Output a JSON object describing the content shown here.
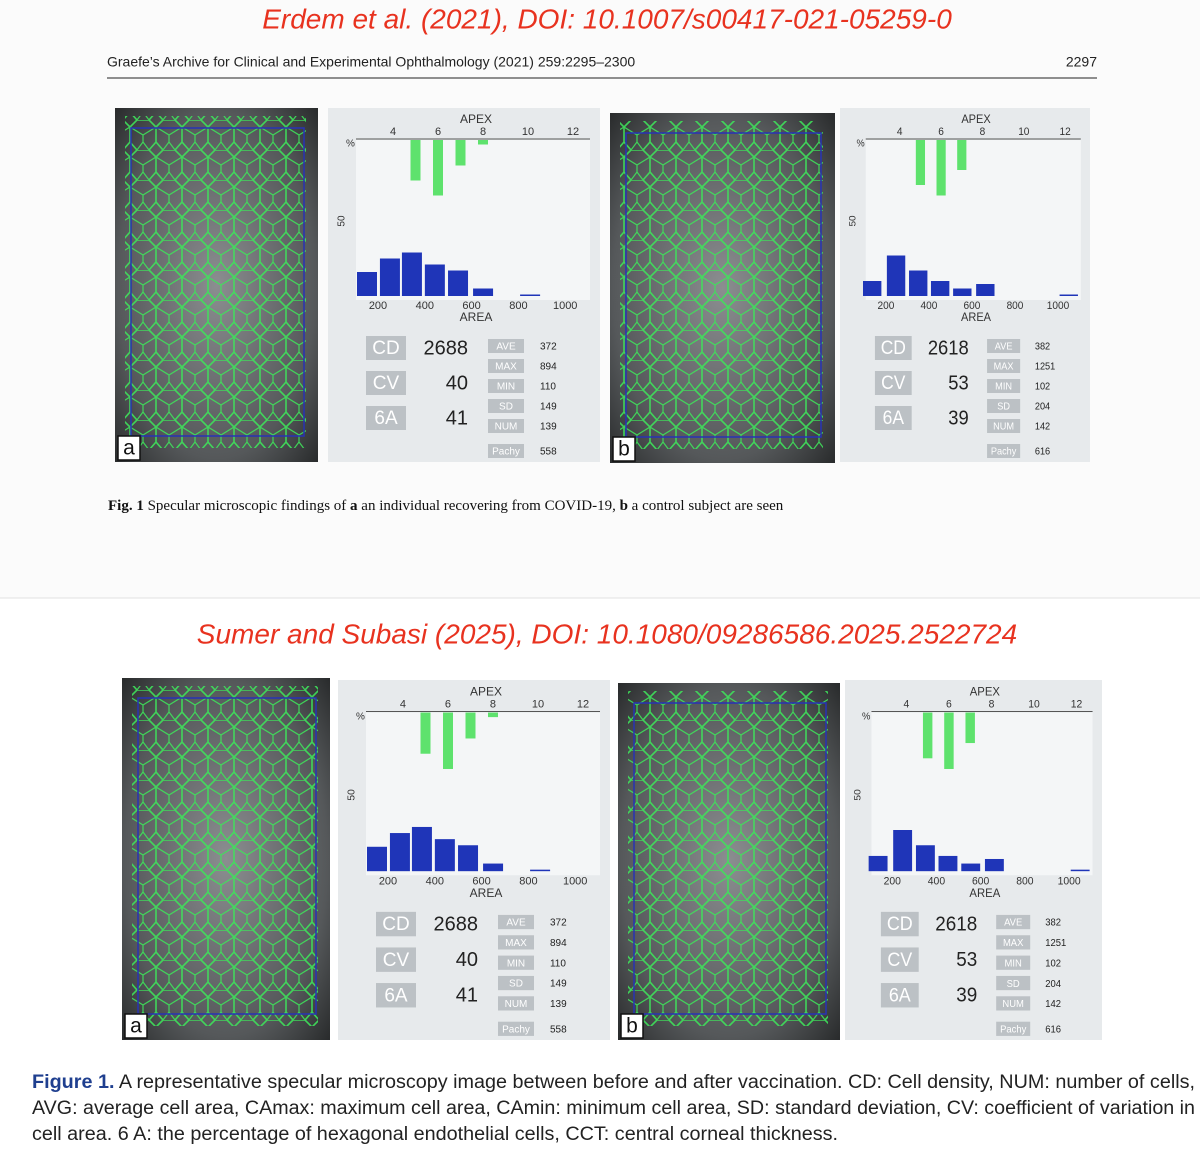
{
  "top": {
    "title": "Erdem et al. (2021), DOI: 10.1007/s00417-021-05259-0",
    "running_head": "Graefe’s Archive for Clinical and Experimental Ophthalmology (2021) 259:2295–2300",
    "page_number": "2297",
    "panels": [
      {
        "label": "a",
        "apex": "APEX",
        "percent_sign": "%",
        "fifty": "50",
        "top_ticks": [
          4,
          6,
          8,
          10,
          12
        ],
        "area_ticks": [
          200,
          400,
          600,
          800,
          1000
        ],
        "area_title": "AREA",
        "hex_bars": {
          "sides": [
            5,
            6,
            7,
            8
          ],
          "percent": [
            27,
            37,
            17,
            3
          ]
        },
        "area_bars": {
          "centers": [
            153,
            251,
            345,
            443,
            542,
            649,
            850
          ],
          "percent": [
            16,
            25,
            29,
            21,
            17,
            5,
            1
          ]
        },
        "stats": [
          {
            "label": "CD",
            "value": 2688
          },
          {
            "label": "CV",
            "value": 40
          },
          {
            "label": "6A",
            "value": 41
          }
        ],
        "details": [
          {
            "label": "AVE",
            "value": 372
          },
          {
            "label": "MAX",
            "value": 894
          },
          {
            "label": "MIN",
            "value": 110
          },
          {
            "label": "SD",
            "value": 149
          },
          {
            "label": "NUM",
            "value": 139
          },
          {
            "label": "Pachy",
            "value": 558
          }
        ]
      },
      {
        "label": "b",
        "apex": "APEX",
        "percent_sign": "%",
        "fifty": "50",
        "top_ticks": [
          4,
          6,
          8,
          10,
          12
        ],
        "area_ticks": [
          200,
          400,
          600,
          800,
          1000
        ],
        "area_title": "AREA",
        "hex_bars": {
          "sides": [
            5,
            6,
            7
          ],
          "percent": [
            30,
            37,
            20
          ]
        },
        "area_bars": {
          "centers": [
            136,
            247,
            350,
            452,
            555,
            662,
            1050
          ],
          "percent": [
            10,
            27,
            17,
            10,
            5,
            8,
            1
          ]
        },
        "stats": [
          {
            "label": "CD",
            "value": 2618
          },
          {
            "label": "CV",
            "value": 53
          },
          {
            "label": "6A",
            "value": 39
          }
        ],
        "details": [
          {
            "label": "AVE",
            "value": 382
          },
          {
            "label": "MAX",
            "value": 1251
          },
          {
            "label": "MIN",
            "value": 102
          },
          {
            "label": "SD",
            "value": 204
          },
          {
            "label": "NUM",
            "value": 142
          },
          {
            "label": "Pachy",
            "value": 616
          }
        ]
      }
    ],
    "caption": {
      "label": "Fig. 1",
      "parts": [
        " Specular microscopic findings of ",
        "a",
        " an individual recovering from COVID-19, ",
        "b",
        " a control subject are seen"
      ]
    }
  },
  "bottom": {
    "title": "Sumer and Subasi (2025), DOI: 10.1080/09286586.2025.2522724",
    "panels": [
      {
        "label": "a",
        "apex": "APEX",
        "percent_sign": "%",
        "fifty": "50",
        "top_ticks": [
          4,
          6,
          8,
          10,
          12
        ],
        "area_ticks": [
          200,
          400,
          600,
          800,
          1000
        ],
        "area_title": "AREA",
        "hex_bars": {
          "sides": [
            5,
            6,
            7,
            8
          ],
          "percent": [
            27,
            37,
            17,
            3
          ]
        },
        "area_bars": {
          "centers": [
            153,
            251,
            345,
            443,
            542,
            649,
            850
          ],
          "percent": [
            16,
            25,
            29,
            21,
            17,
            5,
            1
          ]
        },
        "stats": [
          {
            "label": "CD",
            "value": 2688
          },
          {
            "label": "CV",
            "value": 40
          },
          {
            "label": "6A",
            "value": 41
          }
        ],
        "details": [
          {
            "label": "AVE",
            "value": 372
          },
          {
            "label": "MAX",
            "value": 894
          },
          {
            "label": "MIN",
            "value": 110
          },
          {
            "label": "SD",
            "value": 149
          },
          {
            "label": "NUM",
            "value": 139
          },
          {
            "label": "Pachy",
            "value": 558
          }
        ]
      },
      {
        "label": "b",
        "apex": "APEX",
        "percent_sign": "%",
        "fifty": "50",
        "top_ticks": [
          4,
          6,
          8,
          10,
          12
        ],
        "area_ticks": [
          200,
          400,
          600,
          800,
          1000
        ],
        "area_title": "AREA",
        "hex_bars": {
          "sides": [
            5,
            6,
            7
          ],
          "percent": [
            30,
            37,
            20
          ]
        },
        "area_bars": {
          "centers": [
            136,
            247,
            350,
            452,
            555,
            662,
            1050
          ],
          "percent": [
            10,
            27,
            17,
            10,
            5,
            8,
            1
          ]
        },
        "stats": [
          {
            "label": "CD",
            "value": 2618
          },
          {
            "label": "CV",
            "value": 53
          },
          {
            "label": "6A",
            "value": 39
          }
        ],
        "details": [
          {
            "label": "AVE",
            "value": 382
          },
          {
            "label": "MAX",
            "value": 1251
          },
          {
            "label": "MIN",
            "value": 102
          },
          {
            "label": "SD",
            "value": 204
          },
          {
            "label": "NUM",
            "value": 142
          },
          {
            "label": "Pachy",
            "value": 616
          }
        ]
      }
    ],
    "caption": {
      "label": "Figure 1.",
      "lines": [
        " A representative specular microscopy image between before and after vaccination. CD: Cell density, NUM: number of cells,",
        "AVG: average cell area, CAmax: maximum cell area, CAmin: minimum cell area, SD: standard deviation, CV: coefficient of variation in",
        "cell area. 6 A: the percentage of hexagonal endothelial cells, CCT: central corneal thickness."
      ]
    }
  }
}
